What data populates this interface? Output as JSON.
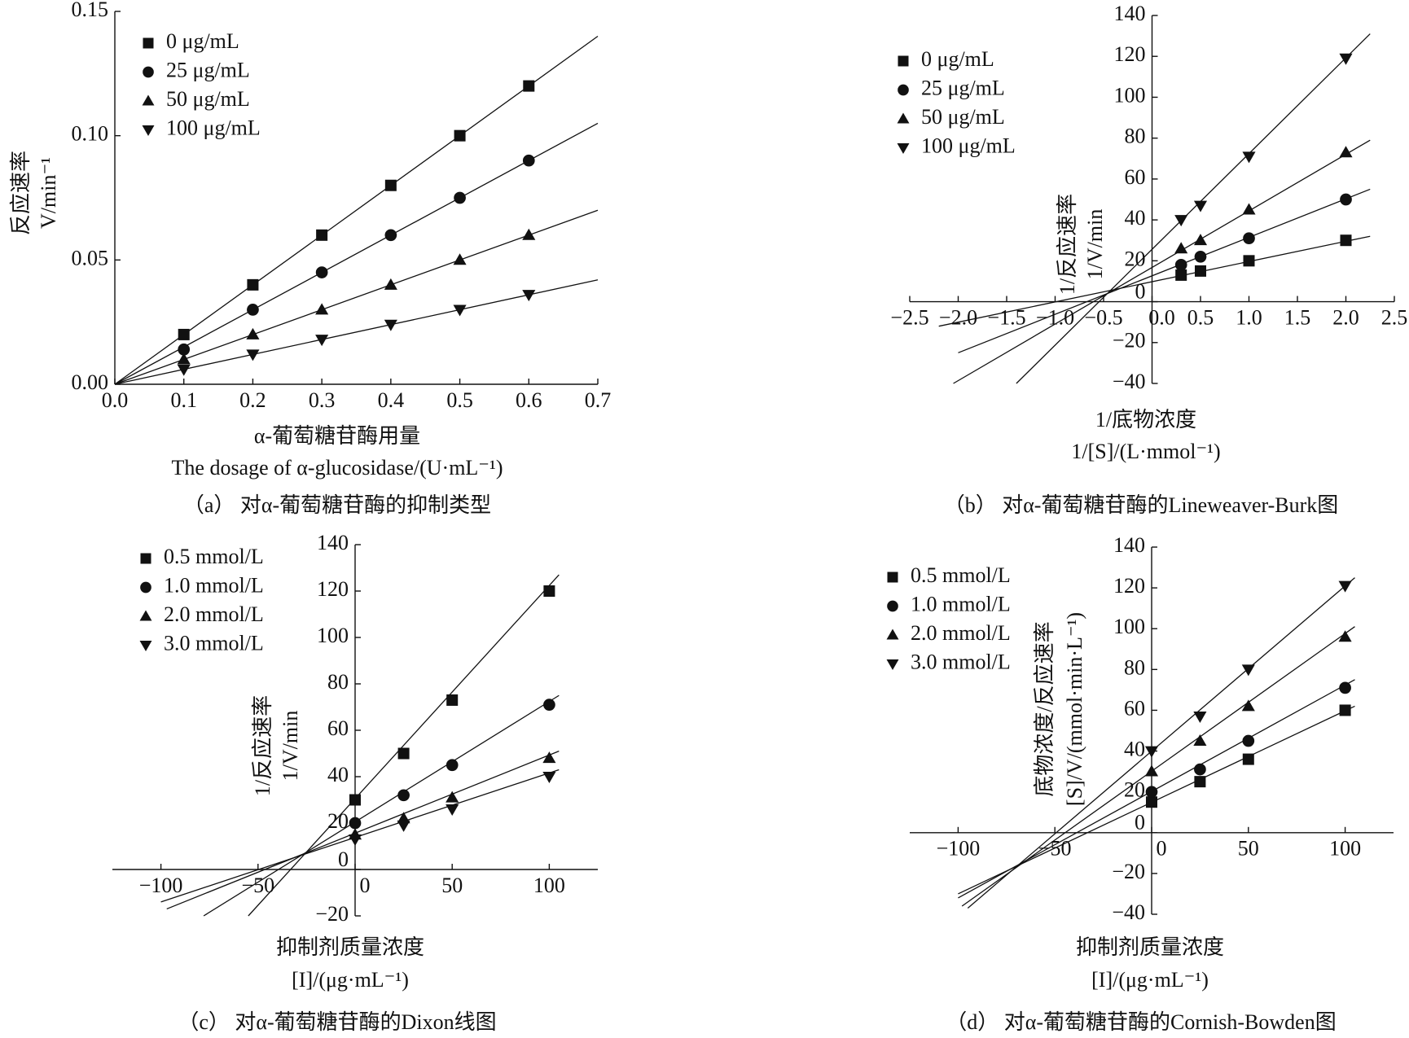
{
  "chart_data": [
    {
      "type": "scatter",
      "axis_position": "edge",
      "caption": "（a） 对α-葡萄糖苷酶的抑制类型",
      "ylabel": [
        "反应速率",
        "V/min⁻¹"
      ],
      "xlabel": [
        "α-葡萄糖苷酶用量",
        "The dosage of α-glucosidase/(U·mL⁻¹)"
      ],
      "xlim": [
        0,
        0.7
      ],
      "xticks": [
        {
          "value": 0,
          "label": "0.0"
        },
        0.1,
        0.2,
        0.3,
        0.4,
        0.5,
        0.6,
        0.7
      ],
      "ylim": [
        0,
        0.15
      ],
      "yticks": [
        {
          "value": 0,
          "label": "0.00"
        },
        0.05,
        {
          "value": 0.1,
          "label": "0.10"
        },
        0.15
      ],
      "x": [
        0.1,
        0.2,
        0.3,
        0.4,
        0.5,
        0.6
      ],
      "series": [
        {
          "name": "0 μg/mL",
          "marker": "square",
          "color": "#111111",
          "values": [
            0.02,
            0.04,
            0.06,
            0.08,
            0.1,
            0.12
          ],
          "trend_x": [
            0,
            0.7
          ],
          "trend_y": [
            0,
            0.14
          ]
        },
        {
          "name": "25 μg/mL",
          "marker": "circle",
          "color": "#111111",
          "values": [
            0.014,
            0.03,
            0.045,
            0.06,
            0.075,
            0.09
          ],
          "trend_x": [
            0,
            0.7
          ],
          "trend_y": [
            0,
            0.105
          ]
        },
        {
          "name": "50 μg/mL",
          "marker": "triangle-up",
          "color": "#111111",
          "values": [
            0.01,
            0.02,
            0.03,
            0.04,
            0.05,
            0.06
          ],
          "trend_x": [
            0,
            0.7
          ],
          "trend_y": [
            0,
            0.07
          ]
        },
        {
          "name": "100 μg/mL",
          "marker": "triangle-down",
          "color": "#111111",
          "values": [
            0.006,
            0.012,
            0.018,
            0.024,
            0.03,
            0.036
          ],
          "trend_x": [
            0,
            0.7
          ],
          "trend_y": [
            0,
            0.042
          ]
        }
      ]
    },
    {
      "type": "scatter",
      "axis_position": "origin",
      "caption": "（b） 对α-葡萄糖苷酶的Lineweaver-Burk图",
      "ylabel": [
        "1/反应速率",
        "1/V/min"
      ],
      "xlabel": [
        "1/底物浓度",
        "1/[S]/(L·mmol⁻¹)"
      ],
      "xlim": [
        -2.5,
        2.5
      ],
      "xticks": [
        {
          "value": -2.5,
          "label": "−2.5"
        },
        {
          "value": -2,
          "label": "−2.0"
        },
        {
          "value": -1.5,
          "label": "−1.5"
        },
        {
          "value": -1,
          "label": "−1.0"
        },
        {
          "value": -0.5,
          "label": "−0.5"
        },
        {
          "value": 0,
          "label": "0.0"
        },
        0.5,
        {
          "value": 1,
          "label": "1.0"
        },
        1.5,
        {
          "value": 2,
          "label": "2.0"
        },
        2.5
      ],
      "ylim": [
        -40,
        140
      ],
      "yticks": [
        {
          "value": -40,
          "label": "−40"
        },
        {
          "value": -20,
          "label": "−20"
        },
        0,
        20,
        40,
        60,
        80,
        100,
        120,
        140
      ],
      "x": [
        0.3,
        0.5,
        1.0,
        2.0
      ],
      "series": [
        {
          "name": "0 μg/mL",
          "marker": "square",
          "color": "#111111",
          "values": [
            13,
            15,
            20,
            30
          ],
          "trend_x": [
            -2.2,
            2.25
          ],
          "trend_y": [
            -12,
            32
          ]
        },
        {
          "name": "25 μg/mL",
          "marker": "circle",
          "color": "#111111",
          "values": [
            18,
            22,
            31,
            50
          ],
          "trend_x": [
            -2.0,
            2.25
          ],
          "trend_y": [
            -25,
            55
          ]
        },
        {
          "name": "50 μg/mL",
          "marker": "triangle-up",
          "color": "#111111",
          "values": [
            26,
            30,
            45,
            73
          ],
          "trend_x": [
            -2.05,
            2.25
          ],
          "trend_y": [
            -40,
            79
          ]
        },
        {
          "name": "100 μg/mL",
          "marker": "triangle-down",
          "color": "#111111",
          "values": [
            40,
            47,
            71,
            119
          ],
          "trend_x": [
            -1.4,
            2.25
          ],
          "trend_y": [
            -40,
            131
          ]
        }
      ]
    },
    {
      "type": "scatter",
      "axis_position": "origin",
      "caption": "（c） 对α-葡萄糖苷酶的Dixon线图",
      "ylabel": [
        "1/反应速率",
        "1/V/min"
      ],
      "xlabel": [
        "抑制剂质量浓度",
        "[I]/(μg·mL⁻¹)"
      ],
      "xlim": [
        -125,
        125
      ],
      "xticks": [
        {
          "value": -100,
          "label": "−100"
        },
        {
          "value": -50,
          "label": "−50"
        },
        0,
        50,
        100
      ],
      "ylim": [
        -20,
        140
      ],
      "yticks": [
        {
          "value": -20,
          "label": "−20"
        },
        0,
        20,
        40,
        60,
        80,
        100,
        120,
        140
      ],
      "x": [
        0,
        25,
        50,
        100
      ],
      "series": [
        {
          "name": "0.5 mmol/L",
          "marker": "square",
          "color": "#111111",
          "values": [
            30,
            50,
            73,
            120
          ],
          "trend_x": [
            -55,
            105
          ],
          "trend_y": [
            -20,
            127
          ]
        },
        {
          "name": "1.0 mmol/L",
          "marker": "circle",
          "color": "#111111",
          "values": [
            20,
            32,
            45,
            71
          ],
          "trend_x": [
            -78,
            105
          ],
          "trend_y": [
            -20,
            75
          ]
        },
        {
          "name": "2.0 mmol/L",
          "marker": "triangle-up",
          "color": "#111111",
          "values": [
            15,
            22,
            31,
            48
          ],
          "trend_x": [
            -97,
            105
          ],
          "trend_y": [
            -17,
            51
          ]
        },
        {
          "name": "3.0 mmol/L",
          "marker": "triangle-down",
          "color": "#111111",
          "values": [
            13,
            19,
            26,
            40
          ],
          "trend_x": [
            -100,
            105
          ],
          "trend_y": [
            -14,
            43
          ]
        }
      ]
    },
    {
      "type": "scatter",
      "axis_position": "origin",
      "caption": "（d） 对α-葡萄糖苷酶的Cornish-Bowden图",
      "ylabel": [
        "底物浓度/反应速率",
        "[S]/V/(mmol·min·L⁻¹)"
      ],
      "xlabel": [
        "抑制剂质量浓度",
        "[I]/(μg·mL⁻¹)"
      ],
      "xlim": [
        -125,
        125
      ],
      "xticks": [
        {
          "value": -100,
          "label": "−100"
        },
        {
          "value": -50,
          "label": "−50"
        },
        0,
        50,
        100
      ],
      "ylim": [
        -40,
        140
      ],
      "yticks": [
        {
          "value": -40,
          "label": "−40"
        },
        {
          "value": -20,
          "label": "−20"
        },
        0,
        20,
        40,
        60,
        80,
        100,
        120,
        140
      ],
      "x": [
        0,
        25,
        50,
        100
      ],
      "series": [
        {
          "name": "0.5 mmol/L",
          "marker": "square",
          "color": "#111111",
          "values": [
            15,
            25,
            36,
            60
          ],
          "trend_x": [
            -100,
            105
          ],
          "trend_y": [
            -30,
            62
          ]
        },
        {
          "name": "1.0 mmol/L",
          "marker": "circle",
          "color": "#111111",
          "values": [
            20,
            31,
            45,
            71
          ],
          "trend_x": [
            -100,
            105
          ],
          "trend_y": [
            -32,
            75
          ]
        },
        {
          "name": "2.0 mmol/L",
          "marker": "triangle-up",
          "color": "#111111",
          "values": [
            30,
            45,
            62,
            96
          ],
          "trend_x": [
            -98,
            105
          ],
          "trend_y": [
            -36,
            101
          ]
        },
        {
          "name": "3.0 mmol/L",
          "marker": "triangle-down",
          "color": "#111111",
          "values": [
            40,
            57,
            80,
            121
          ],
          "trend_x": [
            -95,
            105
          ],
          "trend_y": [
            -37,
            125
          ]
        }
      ]
    }
  ]
}
